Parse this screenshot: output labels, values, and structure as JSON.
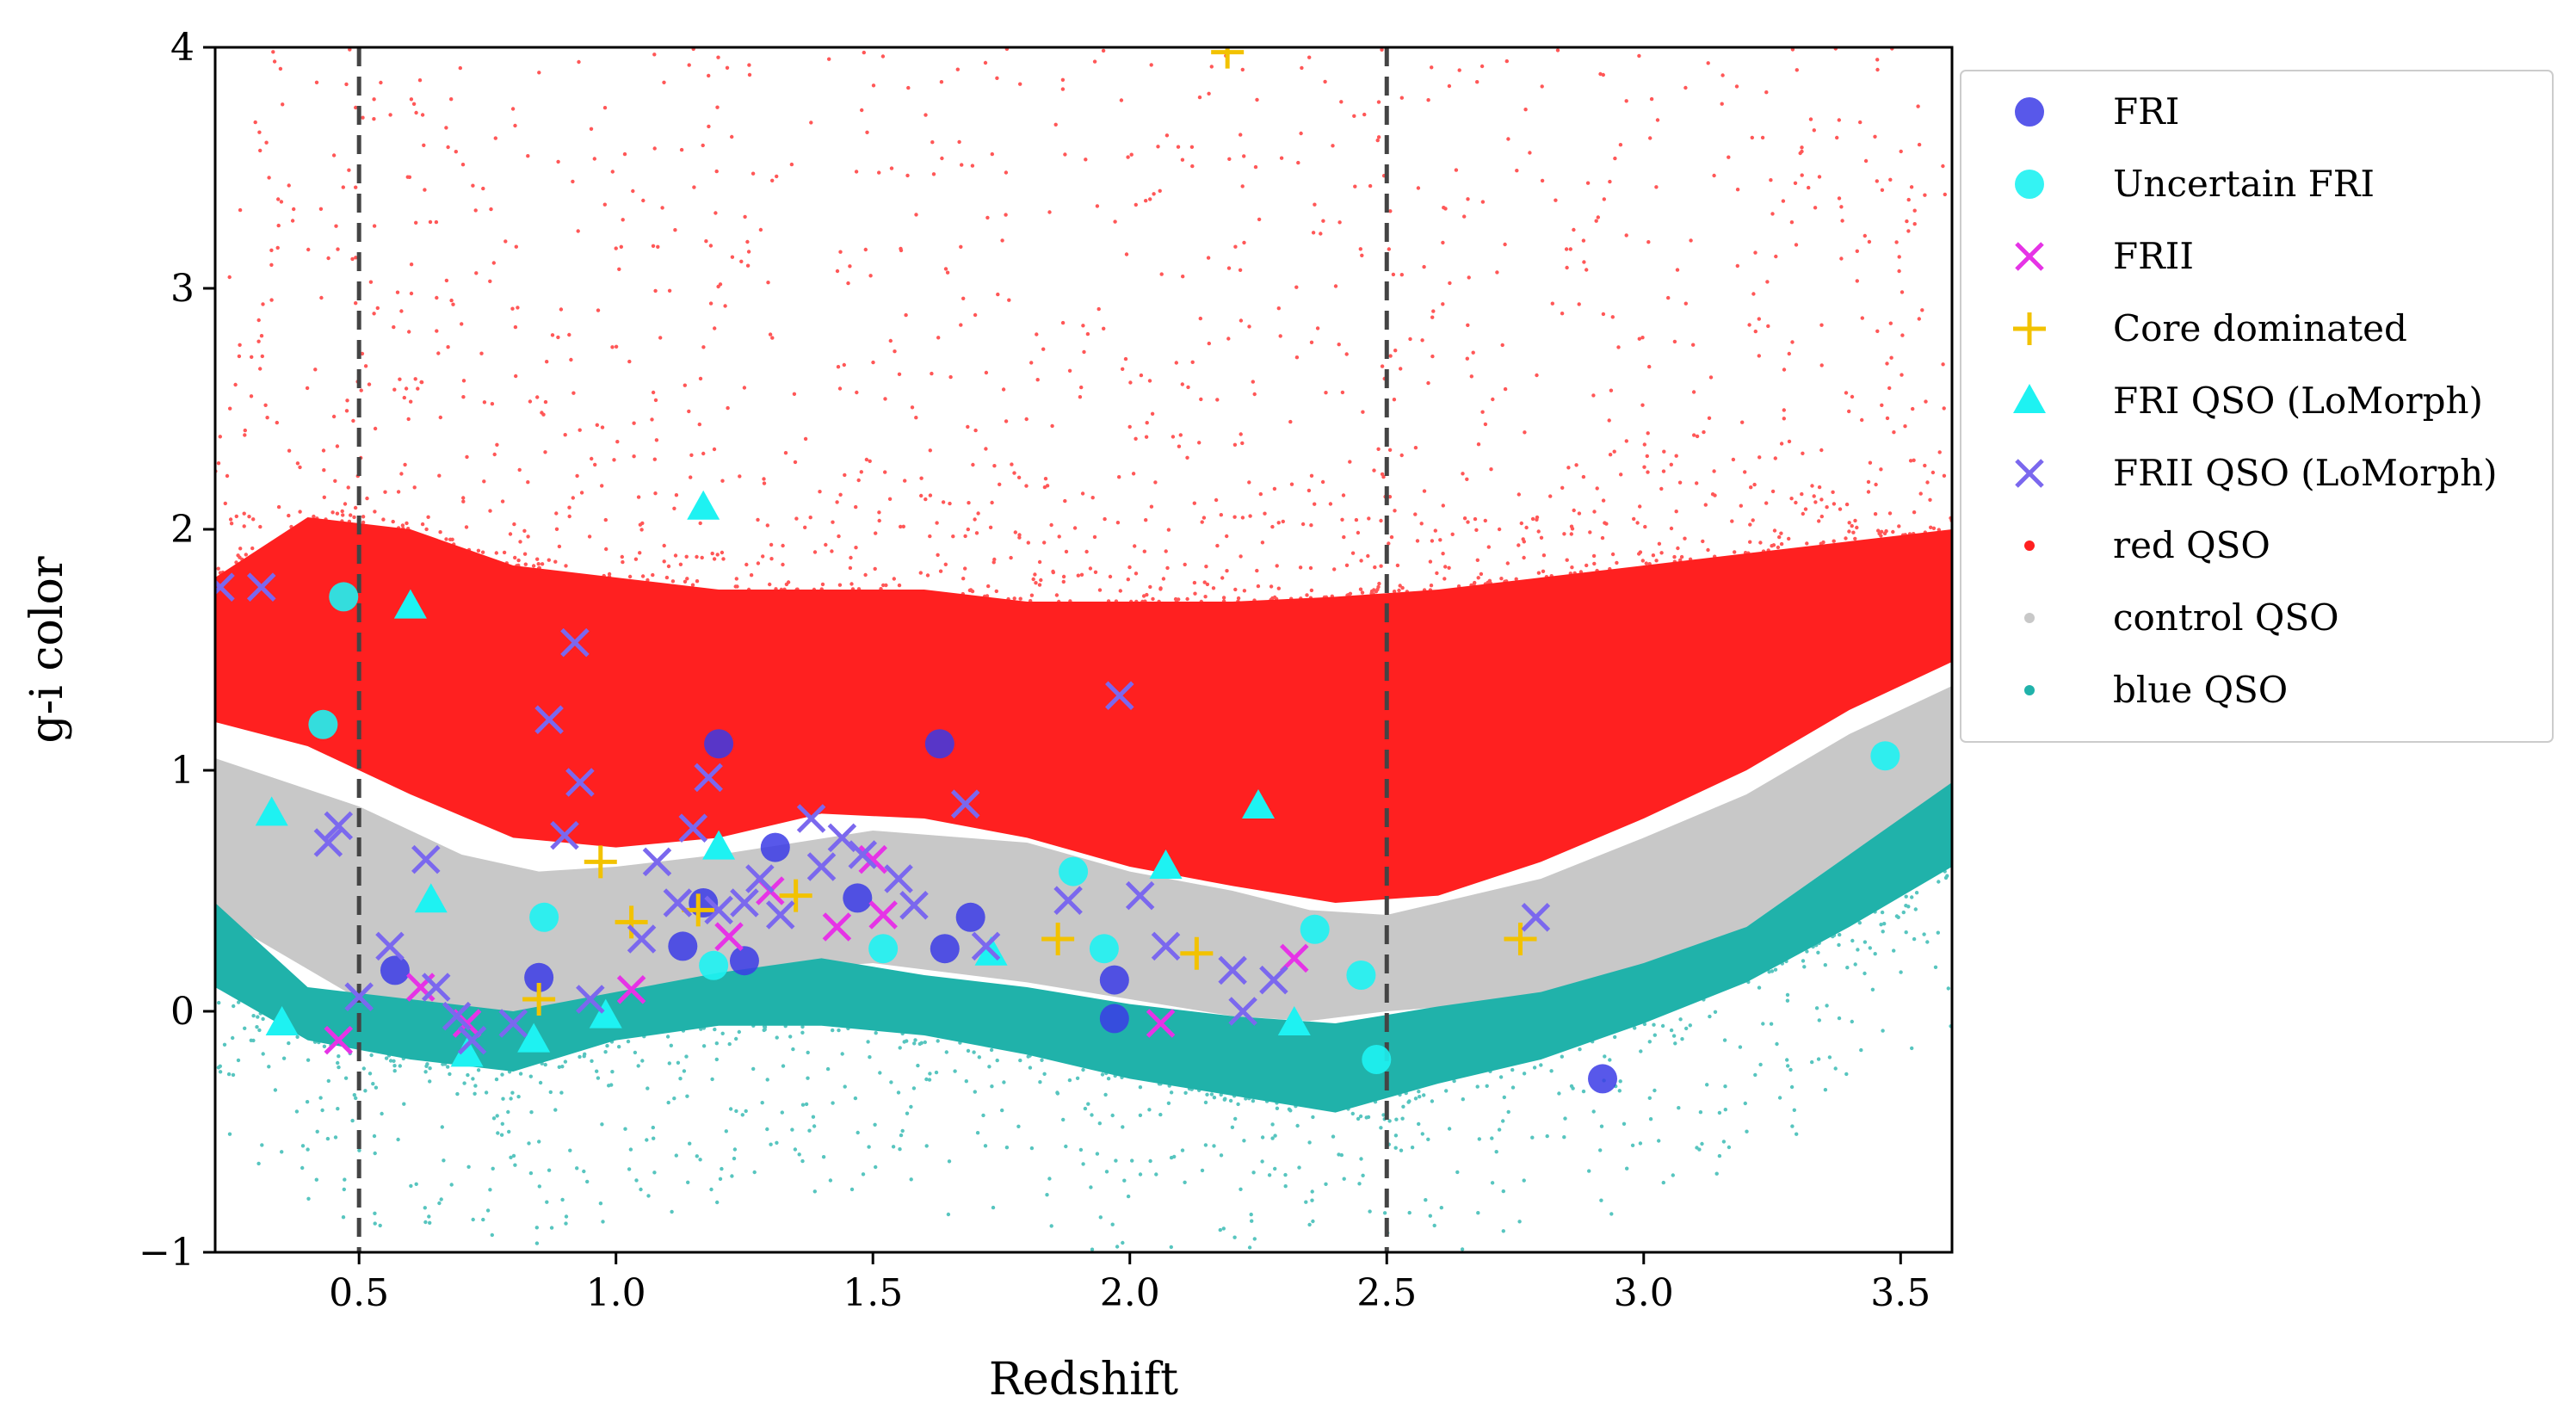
{
  "chart_data": {
    "type": "scatter",
    "xlabel": "Redshift",
    "ylabel": "g-i color",
    "xlim": [
      0.22,
      3.6
    ],
    "ylim": [
      -1,
      4
    ],
    "xticks": [
      0.5,
      1.0,
      1.5,
      2.0,
      2.5,
      3.0,
      3.5
    ],
    "xtick_labels": [
      "0.5",
      "1.0",
      "1.5",
      "2.0",
      "2.5",
      "3.0",
      "3.5"
    ],
    "yticks": [
      -1,
      0,
      1,
      2,
      3,
      4
    ],
    "ytick_labels": [
      "−1",
      "0",
      "1",
      "2",
      "3",
      "4"
    ],
    "vlines": [
      0.5,
      2.5
    ],
    "legend_position": "outside-right",
    "colors": {
      "FRI": "#3b3be6",
      "Uncertain FRI": "#1ef2f2",
      "FRII": "#e633e6",
      "Core dominated": "#f2c200",
      "FRI QSO (LoMorph)": "#1ef2f2",
      "FRII QSO (LoMorph)": "#7b68ee",
      "red QSO": "#ff2020",
      "control QSO": "#c8c8c8",
      "blue QSO": "#20b2aa"
    },
    "bands": [
      {
        "name": "control QSO",
        "z": [
          0.22,
          0.5,
          0.7,
          0.85,
          1.0,
          1.2,
          1.5,
          1.8,
          2.0,
          2.2,
          2.35,
          2.5,
          2.8,
          3.0,
          3.2,
          3.4,
          3.6
        ],
        "lower": [
          0.4,
          0.05,
          0.02,
          -0.02,
          0.05,
          0.15,
          0.2,
          0.12,
          0.05,
          -0.02,
          -0.04,
          0.0,
          0.05,
          0.18,
          0.35,
          0.65,
          0.85
        ],
        "upper": [
          1.05,
          0.85,
          0.65,
          0.58,
          0.6,
          0.65,
          0.75,
          0.7,
          0.58,
          0.5,
          0.42,
          0.4,
          0.55,
          0.72,
          0.9,
          1.15,
          1.35
        ]
      },
      {
        "name": "red QSO",
        "z": [
          0.22,
          0.4,
          0.6,
          0.8,
          1.0,
          1.2,
          1.4,
          1.6,
          1.8,
          2.0,
          2.2,
          2.4,
          2.6,
          2.8,
          3.0,
          3.2,
          3.4,
          3.6
        ],
        "lower": [
          1.2,
          1.1,
          0.9,
          0.72,
          0.68,
          0.72,
          0.82,
          0.8,
          0.72,
          0.6,
          0.52,
          0.45,
          0.48,
          0.62,
          0.8,
          1.0,
          1.25,
          1.45
        ],
        "upper": [
          1.8,
          2.05,
          2.0,
          1.85,
          1.8,
          1.75,
          1.75,
          1.75,
          1.7,
          1.7,
          1.7,
          1.72,
          1.75,
          1.8,
          1.85,
          1.9,
          1.95,
          2.0
        ]
      },
      {
        "name": "blue QSO",
        "z": [
          0.22,
          0.4,
          0.6,
          0.8,
          1.0,
          1.2,
          1.4,
          1.6,
          1.8,
          2.0,
          2.2,
          2.4,
          2.6,
          2.8,
          3.0,
          3.2,
          3.4,
          3.6
        ],
        "lower": [
          0.1,
          -0.12,
          -0.2,
          -0.25,
          -0.12,
          -0.06,
          -0.06,
          -0.1,
          -0.18,
          -0.28,
          -0.35,
          -0.42,
          -0.3,
          -0.2,
          -0.05,
          0.12,
          0.35,
          0.6
        ],
        "upper": [
          0.45,
          0.1,
          0.05,
          0.0,
          0.08,
          0.16,
          0.22,
          0.15,
          0.1,
          0.03,
          -0.02,
          -0.05,
          0.02,
          0.08,
          0.2,
          0.35,
          0.65,
          0.95
        ]
      }
    ],
    "series": [
      {
        "name": "FRI",
        "marker": "circle",
        "points": [
          [
            0.57,
            0.17
          ],
          [
            0.85,
            0.14
          ],
          [
            1.13,
            0.27
          ],
          [
            1.17,
            0.45
          ],
          [
            1.2,
            1.11
          ],
          [
            1.25,
            0.21
          ],
          [
            1.31,
            0.68
          ],
          [
            1.47,
            0.47
          ],
          [
            1.63,
            1.11
          ],
          [
            1.64,
            0.26
          ],
          [
            1.69,
            0.39
          ],
          [
            1.97,
            0.13
          ],
          [
            1.97,
            -0.03
          ],
          [
            2.92,
            -0.28
          ]
        ]
      },
      {
        "name": "Uncertain FRI",
        "marker": "circle",
        "points": [
          [
            0.43,
            1.19
          ],
          [
            0.47,
            1.72
          ],
          [
            0.86,
            0.39
          ],
          [
            1.19,
            0.19
          ],
          [
            1.52,
            0.26
          ],
          [
            1.89,
            0.58
          ],
          [
            1.95,
            0.26
          ],
          [
            2.36,
            0.34
          ],
          [
            2.45,
            0.15
          ],
          [
            2.48,
            -0.2
          ],
          [
            3.47,
            1.06
          ]
        ]
      },
      {
        "name": "FRII",
        "marker": "x",
        "points": [
          [
            0.46,
            -0.12
          ],
          [
            0.62,
            0.1
          ],
          [
            0.71,
            -0.05
          ],
          [
            1.03,
            0.09
          ],
          [
            1.22,
            0.31
          ],
          [
            1.3,
            0.5
          ],
          [
            1.43,
            0.35
          ],
          [
            1.5,
            0.63
          ],
          [
            1.52,
            0.4
          ],
          [
            2.06,
            -0.05
          ],
          [
            2.32,
            0.22
          ]
        ]
      },
      {
        "name": "Core dominated",
        "marker": "plus",
        "points": [
          [
            0.85,
            0.05
          ],
          [
            0.97,
            0.62
          ],
          [
            1.03,
            0.37
          ],
          [
            1.16,
            0.42
          ],
          [
            1.35,
            0.48
          ],
          [
            1.86,
            0.3
          ],
          [
            2.13,
            0.24
          ],
          [
            2.19,
            3.98
          ],
          [
            2.76,
            0.3
          ]
        ]
      },
      {
        "name": "FRI QSO (LoMorph)",
        "marker": "triangle",
        "points": [
          [
            0.33,
            0.82
          ],
          [
            0.35,
            -0.05
          ],
          [
            0.6,
            1.68
          ],
          [
            0.64,
            0.46
          ],
          [
            0.71,
            -0.18
          ],
          [
            0.84,
            -0.12
          ],
          [
            0.98,
            -0.02
          ],
          [
            1.17,
            2.09
          ],
          [
            1.2,
            0.68
          ],
          [
            1.73,
            0.24
          ],
          [
            2.07,
            0.6
          ],
          [
            2.25,
            0.85
          ],
          [
            2.32,
            -0.05
          ]
        ]
      },
      {
        "name": "FRII QSO (LoMorph)",
        "marker": "x",
        "points": [
          [
            0.23,
            1.76
          ],
          [
            0.31,
            1.76
          ],
          [
            0.44,
            0.7
          ],
          [
            0.46,
            0.77
          ],
          [
            0.5,
            0.06
          ],
          [
            0.56,
            0.27
          ],
          [
            0.63,
            0.63
          ],
          [
            0.65,
            0.1
          ],
          [
            0.69,
            -0.02
          ],
          [
            0.72,
            -0.12
          ],
          [
            0.8,
            -0.05
          ],
          [
            0.87,
            1.21
          ],
          [
            0.9,
            0.73
          ],
          [
            0.92,
            1.53
          ],
          [
            0.93,
            0.95
          ],
          [
            0.95,
            0.05
          ],
          [
            1.05,
            0.3
          ],
          [
            1.08,
            0.62
          ],
          [
            1.12,
            0.45
          ],
          [
            1.15,
            0.76
          ],
          [
            1.18,
            0.97
          ],
          [
            1.2,
            0.42
          ],
          [
            1.25,
            0.45
          ],
          [
            1.28,
            0.55
          ],
          [
            1.32,
            0.4
          ],
          [
            1.38,
            0.8
          ],
          [
            1.4,
            0.6
          ],
          [
            1.44,
            0.72
          ],
          [
            1.48,
            0.65
          ],
          [
            1.55,
            0.55
          ],
          [
            1.58,
            0.44
          ],
          [
            1.68,
            0.86
          ],
          [
            1.72,
            0.27
          ],
          [
            1.88,
            0.46
          ],
          [
            1.98,
            1.31
          ],
          [
            2.02,
            0.48
          ],
          [
            2.07,
            0.27
          ],
          [
            2.2,
            0.17
          ],
          [
            2.22,
            0.0
          ],
          [
            2.28,
            0.13
          ],
          [
            2.79,
            0.39
          ]
        ]
      }
    ],
    "legend": [
      {
        "label": "FRI",
        "marker": "circle"
      },
      {
        "label": "Uncertain FRI",
        "marker": "circle"
      },
      {
        "label": "FRII",
        "marker": "x"
      },
      {
        "label": "Core dominated",
        "marker": "plus"
      },
      {
        "label": "FRI QSO (LoMorph)",
        "marker": "triangle"
      },
      {
        "label": "FRII QSO (LoMorph)",
        "marker": "x"
      },
      {
        "label": "red QSO",
        "marker": "dot"
      },
      {
        "label": "control QSO",
        "marker": "dot"
      },
      {
        "label": "blue QSO",
        "marker": "dot"
      }
    ]
  }
}
